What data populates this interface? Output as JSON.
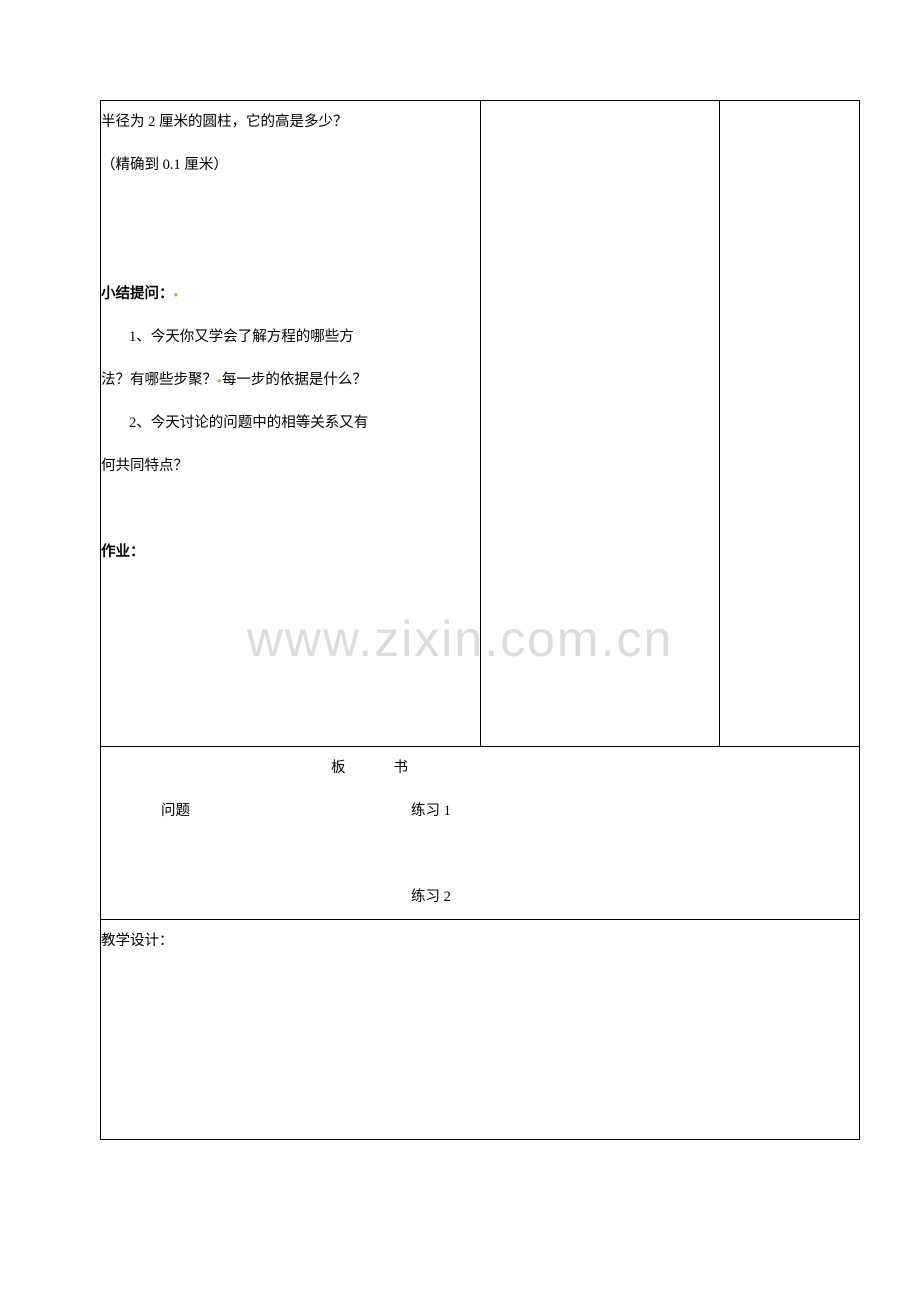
{
  "watermark": "www.zixin.com.cn",
  "mainCell": {
    "line1": "半径为 2 厘米的圆柱，它的高是多少？",
    "line2": "（精确到 0.1 厘米）",
    "summaryTitle": "小结提问：",
    "summaryQ1a": "1、今天你又学会了解方程的哪些方",
    "summaryQ1b": "法？有哪些步聚？",
    "summaryQ1c": "每一步的依据是什么？",
    "summaryQ2a": "2、今天讨论的问题中的相等关系又有",
    "summaryQ2b": "何共同特点？",
    "homework": "作业："
  },
  "boardSection": {
    "title": "板书",
    "topic": "问题",
    "practice1": "练习 1",
    "practice2": "练习 2"
  },
  "designSection": {
    "label": "教学设计："
  },
  "colors": {
    "border": "#000000",
    "text": "#000000",
    "background": "#ffffff",
    "watermark": "#dcdcdc",
    "dot": "#d4a849"
  }
}
